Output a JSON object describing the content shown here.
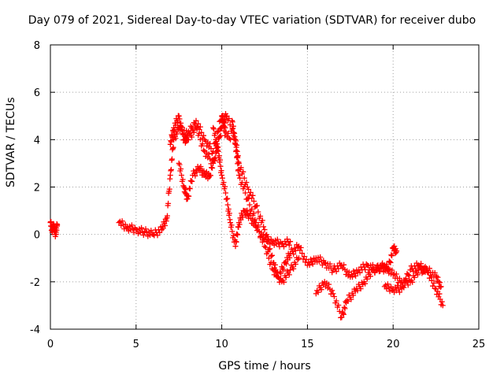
{
  "chart_data": {
    "type": "scatter",
    "title": "Day 079 of 2021, Sidereal Day-to-day VTEC variation (SDTVAR) for receiver dubo",
    "xlabel": "GPS time / hours",
    "ylabel": "SDTVAR / TECUs",
    "xlim": [
      0,
      25
    ],
    "ylim": [
      -4,
      8
    ],
    "xticks": [
      0,
      5,
      10,
      15,
      20,
      25
    ],
    "yticks": [
      -4,
      -2,
      0,
      2,
      4,
      6,
      8
    ],
    "grid": true,
    "marker": "+",
    "color": "#ff0000",
    "series": [
      {
        "name": "tracks",
        "tracks": [
          [
            [
              0.0,
              0.5
            ],
            [
              0.1,
              0.2
            ],
            [
              0.2,
              0.4
            ],
            [
              0.3,
              0.0
            ],
            [
              0.4,
              0.4
            ]
          ],
          [
            [
              4.0,
              0.5
            ],
            [
              4.5,
              0.3
            ],
            [
              5.0,
              0.2
            ],
            [
              5.5,
              0.1
            ],
            [
              6.0,
              0.0
            ],
            [
              6.5,
              0.2
            ],
            [
              6.8,
              0.7
            ],
            [
              7.0,
              2.5
            ],
            [
              7.2,
              4.0
            ],
            [
              7.5,
              4.5
            ],
            [
              8.0,
              4.2
            ],
            [
              8.5,
              4.8
            ],
            [
              9.0,
              4.0
            ],
            [
              9.5,
              3.5
            ],
            [
              10.0,
              5.0
            ],
            [
              10.2,
              4.5
            ]
          ],
          [
            [
              7.0,
              3.8
            ],
            [
              7.2,
              4.5
            ],
            [
              7.5,
              5.0
            ],
            [
              7.8,
              4.0
            ],
            [
              8.0,
              4.0
            ],
            [
              8.5,
              4.5
            ],
            [
              9.0,
              3.5
            ],
            [
              9.5,
              3.0
            ],
            [
              10.0,
              4.5
            ],
            [
              10.5,
              4.0
            ]
          ],
          [
            [
              7.5,
              3.0
            ],
            [
              7.8,
              2.0
            ],
            [
              8.0,
              1.5
            ],
            [
              8.3,
              2.5
            ],
            [
              8.7,
              2.8
            ],
            [
              9.0,
              2.5
            ],
            [
              9.3,
              2.5
            ],
            [
              9.7,
              3.5
            ],
            [
              10.0,
              4.8
            ],
            [
              10.3,
              5.0
            ],
            [
              10.8,
              4.0
            ],
            [
              11.0,
              3.0
            ],
            [
              11.5,
              2.0
            ],
            [
              12.0,
              1.2
            ],
            [
              12.5,
              0.2
            ],
            [
              13.0,
              -1.2
            ],
            [
              13.3,
              -1.8
            ],
            [
              13.7,
              -1.2
            ],
            [
              14.0,
              -0.8
            ],
            [
              14.5,
              -0.5
            ],
            [
              15.0,
              -1.3
            ],
            [
              15.5,
              -1.0
            ],
            [
              16.0,
              -1.2
            ],
            [
              16.5,
              -1.5
            ],
            [
              17.0,
              -1.3
            ],
            [
              17.5,
              -1.8
            ],
            [
              18.0,
              -1.5
            ],
            [
              18.5,
              -1.3
            ],
            [
              19.0,
              -1.5
            ],
            [
              19.5,
              -1.3
            ],
            [
              20.0,
              -1.7
            ],
            [
              20.5,
              -2.0
            ],
            [
              21.0,
              -2.0
            ],
            [
              21.5,
              -1.5
            ],
            [
              22.0,
              -1.5
            ],
            [
              22.5,
              -1.8
            ],
            [
              22.8,
              -2.2
            ]
          ],
          [
            [
              9.5,
              4.5
            ],
            [
              9.8,
              3.5
            ],
            [
              10.0,
              2.5
            ],
            [
              10.3,
              1.5
            ],
            [
              10.5,
              0.5
            ],
            [
              10.8,
              -0.5
            ],
            [
              11.0,
              0.5
            ],
            [
              11.3,
              1.0
            ],
            [
              11.6,
              0.8
            ],
            [
              12.0,
              0.3
            ],
            [
              12.5,
              -0.2
            ],
            [
              13.0,
              -0.3
            ],
            [
              13.5,
              -0.4
            ],
            [
              14.0,
              -0.3
            ]
          ],
          [
            [
              10.6,
              4.8
            ],
            [
              10.8,
              3.8
            ],
            [
              11.0,
              2.5
            ],
            [
              11.5,
              1.5
            ],
            [
              12.0,
              0.5
            ],
            [
              12.5,
              -0.5
            ],
            [
              13.0,
              -1.5
            ],
            [
              13.5,
              -2.0
            ],
            [
              14.0,
              -1.5
            ],
            [
              14.5,
              -1.0
            ]
          ],
          [
            [
              15.5,
              -2.5
            ],
            [
              16.0,
              -2.0
            ],
            [
              16.5,
              -2.5
            ],
            [
              17.0,
              -3.5
            ],
            [
              17.3,
              -2.8
            ],
            [
              17.8,
              -2.4
            ],
            [
              18.3,
              -2.0
            ],
            [
              18.8,
              -1.5
            ],
            [
              19.3,
              -1.4
            ],
            [
              19.7,
              -1.5
            ],
            [
              20.0,
              -0.6
            ],
            [
              20.2,
              -0.7
            ]
          ],
          [
            [
              19.5,
              -2.2
            ],
            [
              20.0,
              -2.3
            ],
            [
              20.5,
              -2.3
            ],
            [
              21.0,
              -1.5
            ],
            [
              21.5,
              -1.3
            ],
            [
              22.0,
              -1.6
            ],
            [
              22.5,
              -2.3
            ],
            [
              22.9,
              -3.0
            ]
          ]
        ]
      }
    ]
  }
}
